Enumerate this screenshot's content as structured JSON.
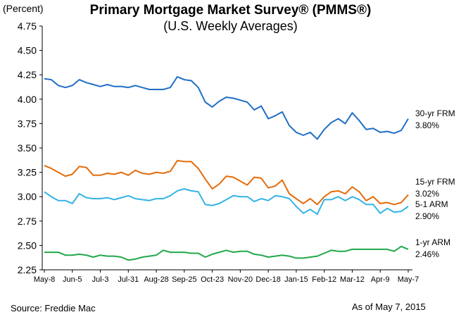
{
  "header": {
    "title": "Primary Mortgage Market Survey® (PMMS®)",
    "subtitle": "(U.S. Weekly Averages)",
    "y_unit": "(Percent)"
  },
  "footer": {
    "source": "Source: Freddie Mac",
    "as_of": "As of May 7, 2015"
  },
  "chart_data": {
    "type": "line",
    "title": "Primary Mortgage Market Survey® (PMMS®)",
    "subtitle": "(U.S. Weekly Averages)",
    "ylabel": "(Percent)",
    "xlabel": "",
    "ylim": [
      2.25,
      4.75
    ],
    "yticks": [
      "4.75",
      "4.50",
      "4.25",
      "4.00",
      "3.75",
      "3.50",
      "3.25",
      "3.00",
      "2.75",
      "2.50",
      "2.25"
    ],
    "x_tick_labels": [
      "May-8",
      "Jun-5",
      "Jul-3",
      "Jul-31",
      "Aug-28",
      "Sep-25",
      "Oct-23",
      "Nov-20",
      "Dec-18",
      "Jan-15",
      "Feb-12",
      "Mar-12",
      "Apr-9",
      "May-7"
    ],
    "x_tick_index": [
      0,
      4,
      8,
      12,
      16,
      20,
      24,
      28,
      32,
      36,
      40,
      44,
      48,
      52
    ],
    "grid": false,
    "series": [
      {
        "name": "30-yr FRM",
        "end_label": "3.80%",
        "color": "#1f6fc5",
        "values": [
          4.21,
          4.2,
          4.14,
          4.12,
          4.14,
          4.2,
          4.17,
          4.15,
          4.13,
          4.15,
          4.13,
          4.13,
          4.12,
          4.14,
          4.12,
          4.1,
          4.1,
          4.1,
          4.12,
          4.23,
          4.2,
          4.19,
          4.12,
          3.97,
          3.92,
          3.98,
          4.02,
          4.01,
          3.99,
          3.97,
          3.89,
          3.93,
          3.8,
          3.83,
          3.87,
          3.73,
          3.66,
          3.63,
          3.66,
          3.59,
          3.69,
          3.76,
          3.8,
          3.75,
          3.86,
          3.78,
          3.69,
          3.7,
          3.66,
          3.67,
          3.65,
          3.68,
          3.8
        ]
      },
      {
        "name": "15-yr FRM",
        "end_label": "3.02%",
        "color": "#e46c0a",
        "values": [
          3.32,
          3.29,
          3.25,
          3.21,
          3.23,
          3.31,
          3.3,
          3.22,
          3.22,
          3.24,
          3.23,
          3.25,
          3.22,
          3.27,
          3.24,
          3.23,
          3.25,
          3.24,
          3.26,
          3.37,
          3.36,
          3.36,
          3.29,
          3.18,
          3.08,
          3.13,
          3.21,
          3.2,
          3.16,
          3.12,
          3.2,
          3.19,
          3.09,
          3.11,
          3.17,
          3.03,
          2.98,
          2.93,
          2.98,
          2.92,
          3.0,
          3.05,
          3.06,
          3.03,
          3.1,
          3.05,
          2.96,
          3.0,
          2.93,
          2.94,
          2.92,
          2.94,
          3.02
        ]
      },
      {
        "name": "5-1 ARM",
        "end_label": "2.90%",
        "color": "#33b3e6",
        "values": [
          3.05,
          3.0,
          2.96,
          2.96,
          2.93,
          3.03,
          2.99,
          2.98,
          2.98,
          2.99,
          2.97,
          2.99,
          3.01,
          2.98,
          2.97,
          2.96,
          2.98,
          2.98,
          3.01,
          3.06,
          3.08,
          3.06,
          3.05,
          2.92,
          2.91,
          2.93,
          2.97,
          3.01,
          3.0,
          3.0,
          2.95,
          2.98,
          2.96,
          3.01,
          3.0,
          2.98,
          2.9,
          2.83,
          2.87,
          2.82,
          2.97,
          2.97,
          3.0,
          2.96,
          3.0,
          2.97,
          2.92,
          2.92,
          2.83,
          2.88,
          2.84,
          2.85,
          2.9
        ]
      },
      {
        "name": "1-yr ARM",
        "end_label": "2.46%",
        "color": "#22a84a",
        "values": [
          2.43,
          2.43,
          2.43,
          2.4,
          2.4,
          2.41,
          2.4,
          2.38,
          2.4,
          2.39,
          2.39,
          2.38,
          2.35,
          2.36,
          2.38,
          2.39,
          2.4,
          2.45,
          2.43,
          2.43,
          2.43,
          2.42,
          2.42,
          2.38,
          2.41,
          2.43,
          2.45,
          2.43,
          2.44,
          2.44,
          2.41,
          2.4,
          2.38,
          2.39,
          2.4,
          2.39,
          2.37,
          2.37,
          2.38,
          2.39,
          2.42,
          2.45,
          2.44,
          2.44,
          2.46,
          2.46,
          2.46,
          2.46,
          2.46,
          2.46,
          2.44,
          2.49,
          2.46
        ]
      }
    ]
  }
}
